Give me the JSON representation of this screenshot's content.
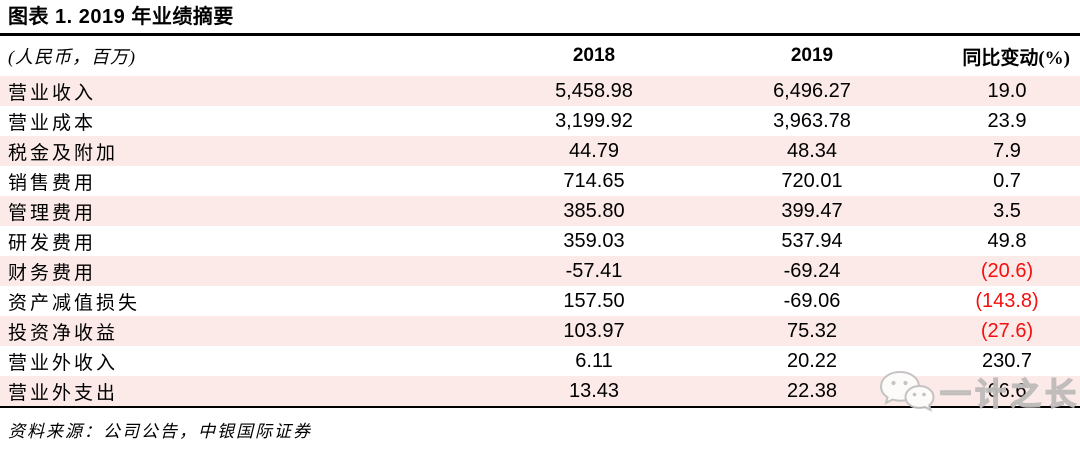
{
  "title": "图表 1. 2019 年业绩摘要",
  "table": {
    "unit_label": "(人民币，百万)",
    "columns": [
      "2018",
      "2019",
      "同比变动(%)"
    ],
    "rows": [
      {
        "label": "营业收入",
        "v2018": "5,458.98",
        "v2019": "6,496.27",
        "change": "19.0",
        "negative": false
      },
      {
        "label": "营业成本",
        "v2018": "3,199.92",
        "v2019": "3,963.78",
        "change": "23.9",
        "negative": false
      },
      {
        "label": "税金及附加",
        "v2018": "44.79",
        "v2019": "48.34",
        "change": "7.9",
        "negative": false
      },
      {
        "label": "销售费用",
        "v2018": "714.65",
        "v2019": "720.01",
        "change": "0.7",
        "negative": false
      },
      {
        "label": "管理费用",
        "v2018": "385.80",
        "v2019": "399.47",
        "change": "3.5",
        "negative": false
      },
      {
        "label": "研发费用",
        "v2018": "359.03",
        "v2019": "537.94",
        "change": "49.8",
        "negative": false
      },
      {
        "label": "财务费用",
        "v2018": "-57.41",
        "v2019": "-69.24",
        "change": "(20.6)",
        "negative": true
      },
      {
        "label": "资产减值损失",
        "v2018": "157.50",
        "v2019": "-69.06",
        "change": "(143.8)",
        "negative": true
      },
      {
        "label": "投资净收益",
        "v2018": "103.97",
        "v2019": "75.32",
        "change": "(27.6)",
        "negative": true
      },
      {
        "label": "营业外收入",
        "v2018": "6.11",
        "v2019": "20.22",
        "change": "230.7",
        "negative": false
      },
      {
        "label": "营业外支出",
        "v2018": "13.43",
        "v2019": "22.38",
        "change": "66.6",
        "negative": false
      }
    ]
  },
  "footer": {
    "source": "资料来源：公司公告，中银国际证券"
  },
  "watermark": {
    "text": "一计之长",
    "icon": "wechat-icon"
  },
  "colors": {
    "row_stripe": "#fbeae7",
    "negative_red": "#f50f0f",
    "watermark_gray": "#bdbbba",
    "rule_black": "#000000"
  }
}
